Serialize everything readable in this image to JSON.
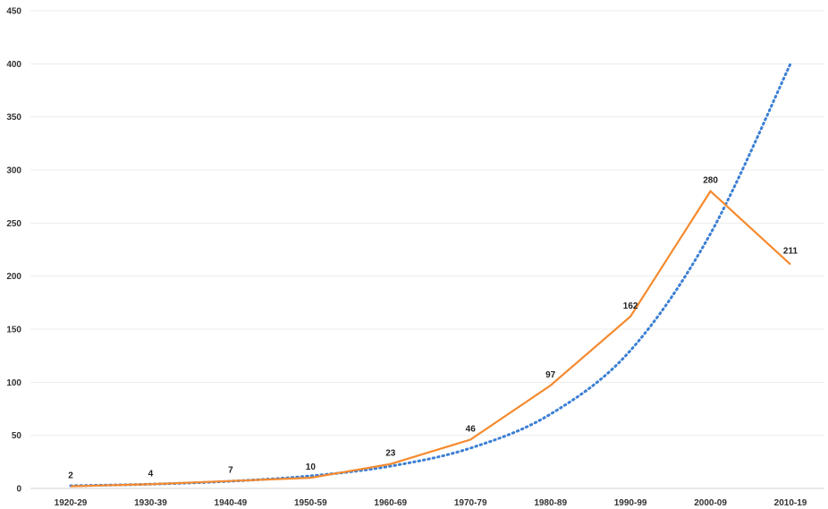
{
  "chart_data": {
    "type": "line",
    "title": "",
    "xlabel": "",
    "ylabel": "",
    "categories": [
      "1920-29",
      "1930-39",
      "1940-49",
      "1950-59",
      "1960-69",
      "1970-79",
      "1980-89",
      "1990-99",
      "2000-09",
      "2010-19"
    ],
    "series": [
      {
        "values": [
          2,
          4,
          7,
          10,
          23,
          46,
          97,
          162,
          280,
          211
        ],
        "color": "#f58a2e",
        "style": "solid",
        "data_labels": true
      },
      {
        "values": [
          2.5,
          4,
          6.8,
          11.8,
          21,
          38,
          70,
          130,
          240,
          400
        ],
        "color": "#3b7fd4",
        "style": "dotted",
        "trendline": "exponential"
      }
    ],
    "ylim": [
      0,
      450
    ],
    "yticks": [
      0,
      50,
      100,
      150,
      200,
      250,
      300,
      350,
      400,
      450
    ],
    "grid": true,
    "legend": "none"
  }
}
